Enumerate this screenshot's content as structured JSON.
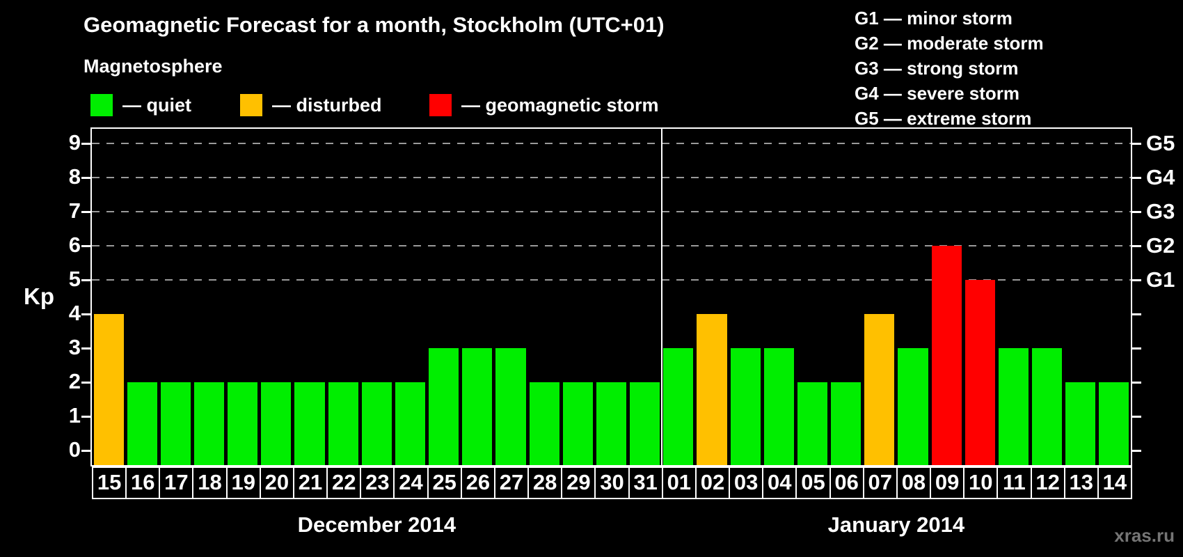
{
  "title": "Geomagnetic Forecast for a month, Stockholm (UTC+01)",
  "magnetosphere_legend": {
    "heading": "Magnetosphere",
    "items": [
      {
        "id": "quiet",
        "label": "— quiet",
        "color": "#00ee00"
      },
      {
        "id": "disturbed",
        "label": "— disturbed",
        "color": "#ffc000"
      },
      {
        "id": "storm",
        "label": "— geomagnetic storm",
        "color": "#ff0000"
      }
    ]
  },
  "g_scale_legend": {
    "items": [
      "G1 — minor storm",
      "G2 — moderate storm",
      "G3 — strong storm",
      "G4 — severe storm",
      "G5 — extreme storm"
    ]
  },
  "watermark": "xras.ru",
  "chart_data": {
    "type": "bar",
    "ylabel": "Kp",
    "ylim": [
      0,
      9
    ],
    "yticks": [
      0,
      1,
      2,
      3,
      4,
      5,
      6,
      7,
      8,
      9
    ],
    "gridlines_at_kp": [
      5,
      6,
      7,
      8,
      9
    ],
    "grid": "dashed-horizontal-at-storm-levels-only",
    "legend_position": "top",
    "right_axis": {
      "labels": [
        "G1",
        "G2",
        "G3",
        "G4",
        "G5"
      ],
      "at_kp": [
        5,
        6,
        7,
        8,
        9
      ]
    },
    "status_colors": {
      "quiet": "#00ee00",
      "disturbed": "#ffc000",
      "storm": "#ff0000"
    },
    "groups": [
      {
        "label": "December 2014",
        "days": [
          "15",
          "16",
          "17",
          "18",
          "19",
          "20",
          "21",
          "22",
          "23",
          "24",
          "25",
          "26",
          "27",
          "28",
          "29",
          "30",
          "31"
        ],
        "kp": [
          4,
          2,
          2,
          2,
          2,
          2,
          2,
          2,
          2,
          2,
          3,
          3,
          3,
          2,
          2,
          2,
          2
        ],
        "status": [
          "disturbed",
          "quiet",
          "quiet",
          "quiet",
          "quiet",
          "quiet",
          "quiet",
          "quiet",
          "quiet",
          "quiet",
          "quiet",
          "quiet",
          "quiet",
          "quiet",
          "quiet",
          "quiet",
          "quiet"
        ]
      },
      {
        "label": "January 2014",
        "days": [
          "01",
          "02",
          "03",
          "04",
          "05",
          "06",
          "07",
          "08",
          "09",
          "10",
          "11",
          "12",
          "13",
          "14"
        ],
        "kp": [
          3,
          4,
          3,
          3,
          2,
          2,
          4,
          3,
          6,
          5,
          3,
          3,
          2,
          2
        ],
        "status": [
          "quiet",
          "disturbed",
          "quiet",
          "quiet",
          "quiet",
          "quiet",
          "disturbed",
          "quiet",
          "storm",
          "storm",
          "quiet",
          "quiet",
          "quiet",
          "quiet"
        ]
      }
    ]
  }
}
